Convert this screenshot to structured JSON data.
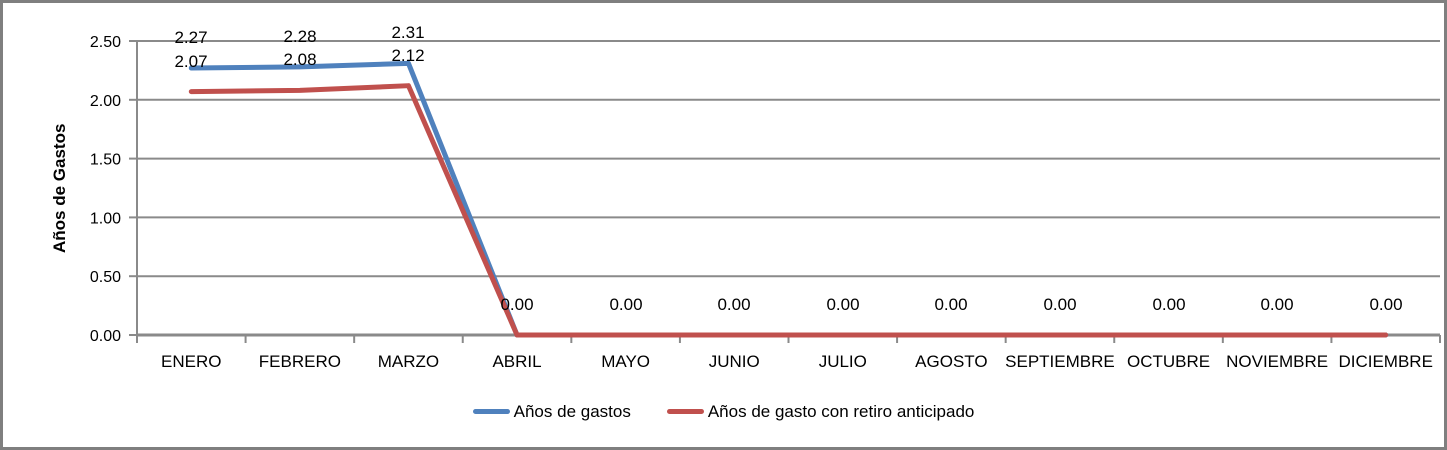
{
  "chart_data": {
    "type": "line",
    "title": "",
    "categories": [
      "ENERO",
      "FEBRERO",
      "MARZO",
      "ABRIL",
      "MAYO",
      "JUNIO",
      "JULIO",
      "AGOSTO",
      "SEPTIEMBRE",
      "OCTUBRE",
      "NOVIEMBRE",
      "DICIEMBRE"
    ],
    "series": [
      {
        "name": "Años de gastos",
        "color": "#4F81BD",
        "values": [
          2.27,
          2.28,
          2.31,
          0,
          0,
          0,
          0,
          0,
          0,
          0,
          0,
          0
        ],
        "labels": [
          "2.27",
          "2.28",
          "2.31",
          "0.00",
          "0.00",
          "0.00",
          "0.00",
          "0.00",
          "0.00",
          "0.00",
          "0.00",
          "0.00"
        ]
      },
      {
        "name": "Años de gasto con retiro anticipado",
        "color": "#C0504D",
        "values": [
          2.07,
          2.08,
          2.12,
          0,
          0,
          0,
          0,
          0,
          0,
          0,
          0,
          0
        ],
        "labels": [
          "2.07",
          "2.08",
          "2.12",
          "0.00",
          "0.00",
          "0.00",
          "0.00",
          "0.00",
          "0.00",
          "0.00",
          "0.00",
          "0.00"
        ]
      }
    ],
    "xlabel": "",
    "ylabel": "Años de Gastos",
    "ylim": [
      0,
      2.5
    ],
    "y_tick_labels": [
      "2.50",
      "2.00",
      "1.50",
      "1.00",
      "0.50",
      "0.00"
    ],
    "grid": true,
    "legend_position": "bottom",
    "data_labels": true
  },
  "colors": {
    "gridline": "#8A8A8A",
    "axis": "#8A8A8A",
    "text": "#000000",
    "chart_border": "#7F7F7F",
    "background": "#FFFFFF"
  }
}
